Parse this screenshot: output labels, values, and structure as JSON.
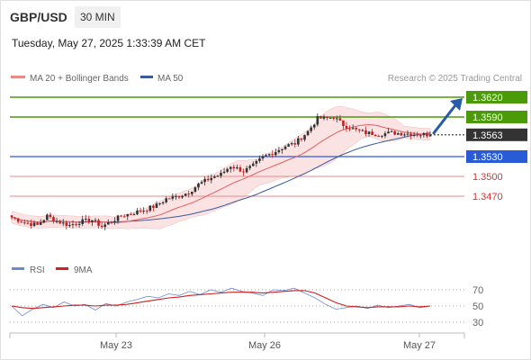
{
  "header": {
    "pair": "GBP/USD",
    "timeframe": "30 MIN"
  },
  "datetime": "Tuesday, May 27, 2025 1:33:39 AM CET",
  "credit": "Research © 2025 Trading Central",
  "colors": {
    "resistance": "#4a9a0a",
    "support_blue": "#2a5bd7",
    "support_red": "#e88a8a",
    "support_red_text": "#e03030",
    "current": "#333333",
    "candle_up": "#333333",
    "candle_down": "#c02020",
    "ma20": "#e06060",
    "band_fill": "#fadcdc",
    "ma50": "#3a5a9a",
    "arrow": "#2a5aa8",
    "rsi": "#6a8ad8",
    "rsi_ma": "#d02020"
  },
  "chart_data": [
    {
      "type": "candlestick",
      "title": "GBP/USD 30 MIN",
      "legend": [
        {
          "name": "MA 20 + Bollinger Bands",
          "color": "#e88a8a"
        },
        {
          "name": "MA 50",
          "color": "#3a5a9a"
        }
      ],
      "x_tick_labels": [
        "May 23",
        "May 26",
        "May 27"
      ],
      "levels": [
        {
          "label": "1.3620",
          "value": 1.362,
          "kind": "resistance"
        },
        {
          "label": "1.3590",
          "value": 1.359,
          "kind": "resistance"
        },
        {
          "label": "1.3563",
          "value": 1.3563,
          "kind": "current"
        },
        {
          "label": "1.3530",
          "value": 1.353,
          "kind": "pivot"
        },
        {
          "label": "1.3500",
          "value": 1.35,
          "kind": "support"
        },
        {
          "label": "1.3470",
          "value": 1.347,
          "kind": "support"
        }
      ],
      "close_path": [
        [
          0,
          1.3438
        ],
        [
          4,
          1.343
        ],
        [
          8,
          1.3426
        ],
        [
          11,
          1.344
        ],
        [
          14,
          1.3432
        ],
        [
          18,
          1.3426
        ],
        [
          21,
          1.3431
        ],
        [
          25,
          1.3434
        ],
        [
          28,
          1.3424
        ],
        [
          31,
          1.3432
        ],
        [
          34,
          1.344
        ],
        [
          38,
          1.3445
        ],
        [
          41,
          1.3449
        ],
        [
          45,
          1.3456
        ],
        [
          48,
          1.3466
        ],
        [
          51,
          1.3469
        ],
        [
          55,
          1.3476
        ],
        [
          58,
          1.3488
        ],
        [
          62,
          1.3498
        ],
        [
          65,
          1.3503
        ],
        [
          68,
          1.3516
        ],
        [
          72,
          1.3508
        ],
        [
          75,
          1.3516
        ],
        [
          78,
          1.3529
        ],
        [
          82,
          1.3538
        ],
        [
          85,
          1.3546
        ],
        [
          88,
          1.355
        ],
        [
          92,
          1.3568
        ],
        [
          95,
          1.3588
        ],
        [
          98,
          1.3588
        ],
        [
          100,
          1.359
        ],
        [
          103,
          1.3578
        ],
        [
          107,
          1.357
        ],
        [
          110,
          1.3566
        ],
        [
          114,
          1.3564
        ],
        [
          118,
          1.3566
        ],
        [
          122,
          1.3565
        ],
        [
          126,
          1.3564
        ],
        [
          130,
          1.3563
        ]
      ],
      "projection": {
        "from": 1.3563,
        "to": 1.362
      }
    },
    {
      "type": "line",
      "title": "",
      "legend": [
        {
          "name": "RSI",
          "color": "#6a8ad8"
        },
        {
          "name": "9MA",
          "color": "#d02020"
        }
      ],
      "y_ticks": [
        70,
        50,
        30
      ],
      "ylim": [
        20,
        80
      ],
      "series": [
        {
          "name": "RSI",
          "values": [
            50,
            38,
            46,
            52,
            48,
            55,
            50,
            52,
            45,
            53,
            50,
            55,
            58,
            62,
            60,
            65,
            63,
            68,
            64,
            70,
            67,
            72,
            68,
            66,
            63,
            70,
            69,
            72,
            66,
            60,
            52,
            46,
            48,
            50,
            47,
            51,
            48,
            50,
            52,
            48,
            50
          ]
        },
        {
          "name": "9MA",
          "values": [
            50,
            48,
            47,
            48,
            49,
            50,
            51,
            51,
            50,
            51,
            51,
            52,
            54,
            56,
            58,
            60,
            61,
            63,
            64,
            65,
            66,
            67,
            67,
            67,
            66,
            67,
            68,
            69,
            69,
            66,
            60,
            54,
            50,
            49,
            48,
            49,
            49,
            49,
            50,
            49,
            50
          ]
        }
      ]
    }
  ]
}
